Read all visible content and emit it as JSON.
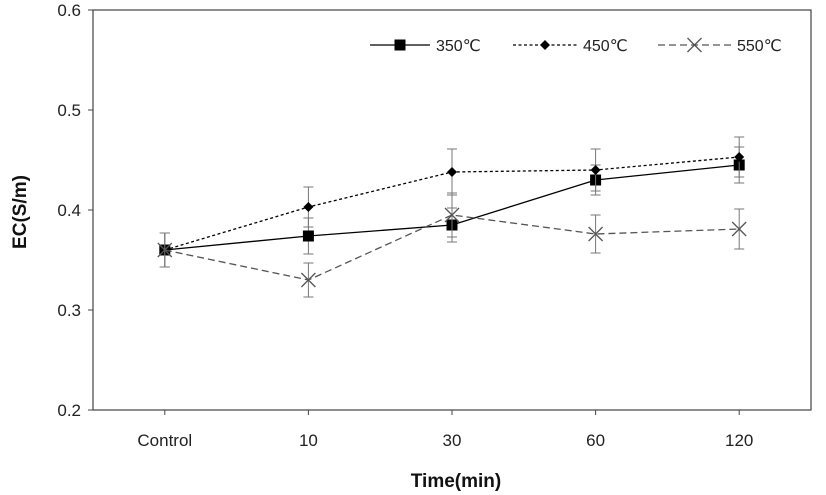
{
  "chart_data": {
    "type": "line",
    "title": "",
    "xlabel": "Time(min)",
    "ylabel": "EC(S/m)",
    "categories": [
      "Control",
      "10",
      "30",
      "60",
      "120"
    ],
    "ylim": [
      0.2,
      0.6
    ],
    "yticks": [
      "0.2",
      "0.3",
      "0.4",
      "0.5",
      "0.6"
    ],
    "ytick_values": [
      0.2,
      0.3,
      0.4,
      0.5,
      0.6
    ],
    "grid": false,
    "legend_position": "top-right",
    "series": [
      {
        "name": "350℃",
        "values": [
          0.36,
          0.374,
          0.385,
          0.43,
          0.445
        ],
        "errors": [
          0.017,
          0.018,
          0.017,
          0.015,
          0.018
        ],
        "line_style": "solid",
        "marker": "square",
        "color": "#000000"
      },
      {
        "name": "450℃",
        "values": [
          0.36,
          0.403,
          0.438,
          0.44,
          0.453
        ],
        "errors": [
          0.017,
          0.02,
          0.023,
          0.021,
          0.02
        ],
        "line_style": "dotted",
        "marker": "diamond",
        "color": "#000000"
      },
      {
        "name": "550℃",
        "values": [
          0.36,
          0.33,
          0.395,
          0.376,
          0.381
        ],
        "errors": [
          0.017,
          0.017,
          0.022,
          0.019,
          0.02
        ],
        "line_style": "dashed",
        "marker": "x",
        "color": "#555555"
      }
    ]
  }
}
